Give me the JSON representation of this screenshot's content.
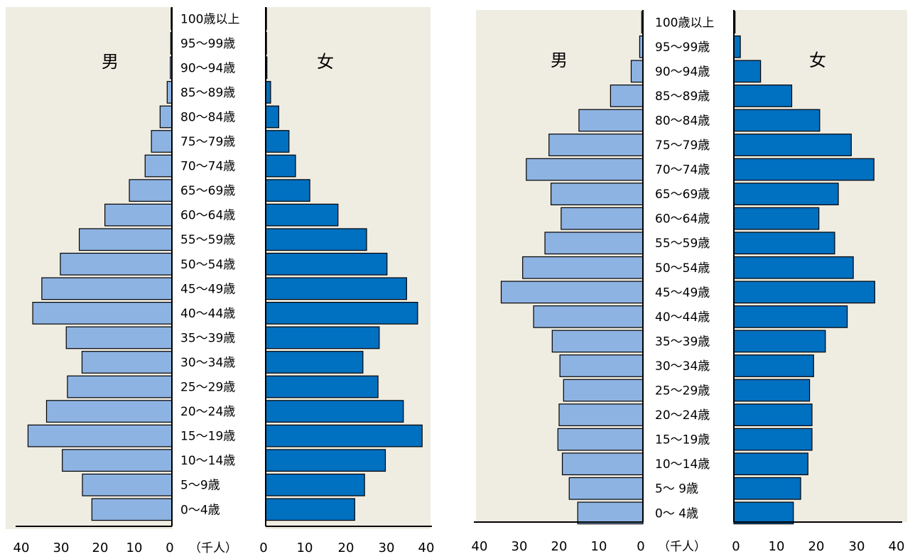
{
  "chart_data": [
    {
      "type": "bar",
      "orientation": "horizontal",
      "subtype": "population-pyramid",
      "categories": [
        "100歳以上",
        "95～99歳",
        "90～94歳",
        "85～89歳",
        "80～84歳",
        "75～79歳",
        "70～74歳",
        "65～69歳",
        "60～64歳",
        "55～59歳",
        "50～54歳",
        "45～49歳",
        "40～44歳",
        "35～39歳",
        "30～34歳",
        "25～29歳",
        "20～24歳",
        "15～19歳",
        "10～14歳",
        "5～9歳",
        "0～4歳"
      ],
      "series": [
        {
          "name": "男",
          "side": "left",
          "color": "#8db3e2",
          "values": [
            0.2,
            0.3,
            0.4,
            1.2,
            3.0,
            5.2,
            6.8,
            10.8,
            17.0,
            23.5,
            28.3,
            33.0,
            35.3,
            26.8,
            22.8,
            26.5,
            31.8,
            36.5,
            27.8,
            22.7,
            20.3
          ]
        },
        {
          "name": "女",
          "side": "right",
          "color": "#0070c0",
          "values": [
            0.2,
            0.2,
            0.3,
            1.2,
            3.2,
            5.7,
            7.3,
            10.8,
            17.7,
            24.7,
            29.7,
            34.5,
            37.2,
            27.8,
            23.8,
            27.5,
            33.7,
            38.3,
            29.3,
            24.2,
            21.8
          ]
        }
      ],
      "x_ticks": [
        "40",
        "30",
        "20",
        "10",
        "0"
      ],
      "x_ticks_right": [
        "0",
        "10",
        "20",
        "30",
        "40"
      ],
      "unit": "（千人）",
      "xlim": [
        0,
        40
      ],
      "grid": false
    },
    {
      "type": "bar",
      "orientation": "horizontal",
      "subtype": "population-pyramid",
      "categories": [
        "100歳以上",
        "95～99歳",
        "90～94歳",
        "85～89歳",
        "80～84歳",
        "75～79歳",
        "70～74歳",
        "65～69歳",
        "60～64歳",
        "55～59歳",
        "50～54歳",
        "45～49歳",
        "40～44歳",
        "35～39歳",
        "30～34歳",
        "25～29歳",
        "20～24歳",
        "15～19歳",
        "10～14歳",
        "5～ 9歳",
        "0～ 4歳"
      ],
      "series": [
        {
          "name": "男",
          "side": "left",
          "color": "#8db3e2",
          "values": [
            0.3,
            0.8,
            2.9,
            8.0,
            15.8,
            23.2,
            28.8,
            22.7,
            20.2,
            24.2,
            29.7,
            35.0,
            27.0,
            22.4,
            20.5,
            19.6,
            20.7,
            21.0,
            19.9,
            18.2,
            16.1
          ]
        },
        {
          "name": "女",
          "side": "right",
          "color": "#0070c0",
          "values": [
            0.3,
            1.6,
            6.6,
            14.3,
            21.2,
            29.0,
            34.6,
            25.8,
            21.0,
            24.9,
            29.5,
            34.8,
            28.0,
            22.6,
            19.7,
            18.7,
            19.3,
            19.3,
            18.3,
            16.5,
            14.7
          ]
        }
      ],
      "x_ticks": [
        "40",
        "30",
        "20",
        "10",
        "0"
      ],
      "x_ticks_right": [
        "0",
        "10",
        "20",
        "30",
        "40"
      ],
      "unit": "（千人）",
      "xlim": [
        0,
        40
      ],
      "grid": false
    }
  ],
  "colors": {
    "panel_bg": "#efece2",
    "male": "#8db3e2",
    "female": "#0070c0",
    "axis": "#000000"
  }
}
